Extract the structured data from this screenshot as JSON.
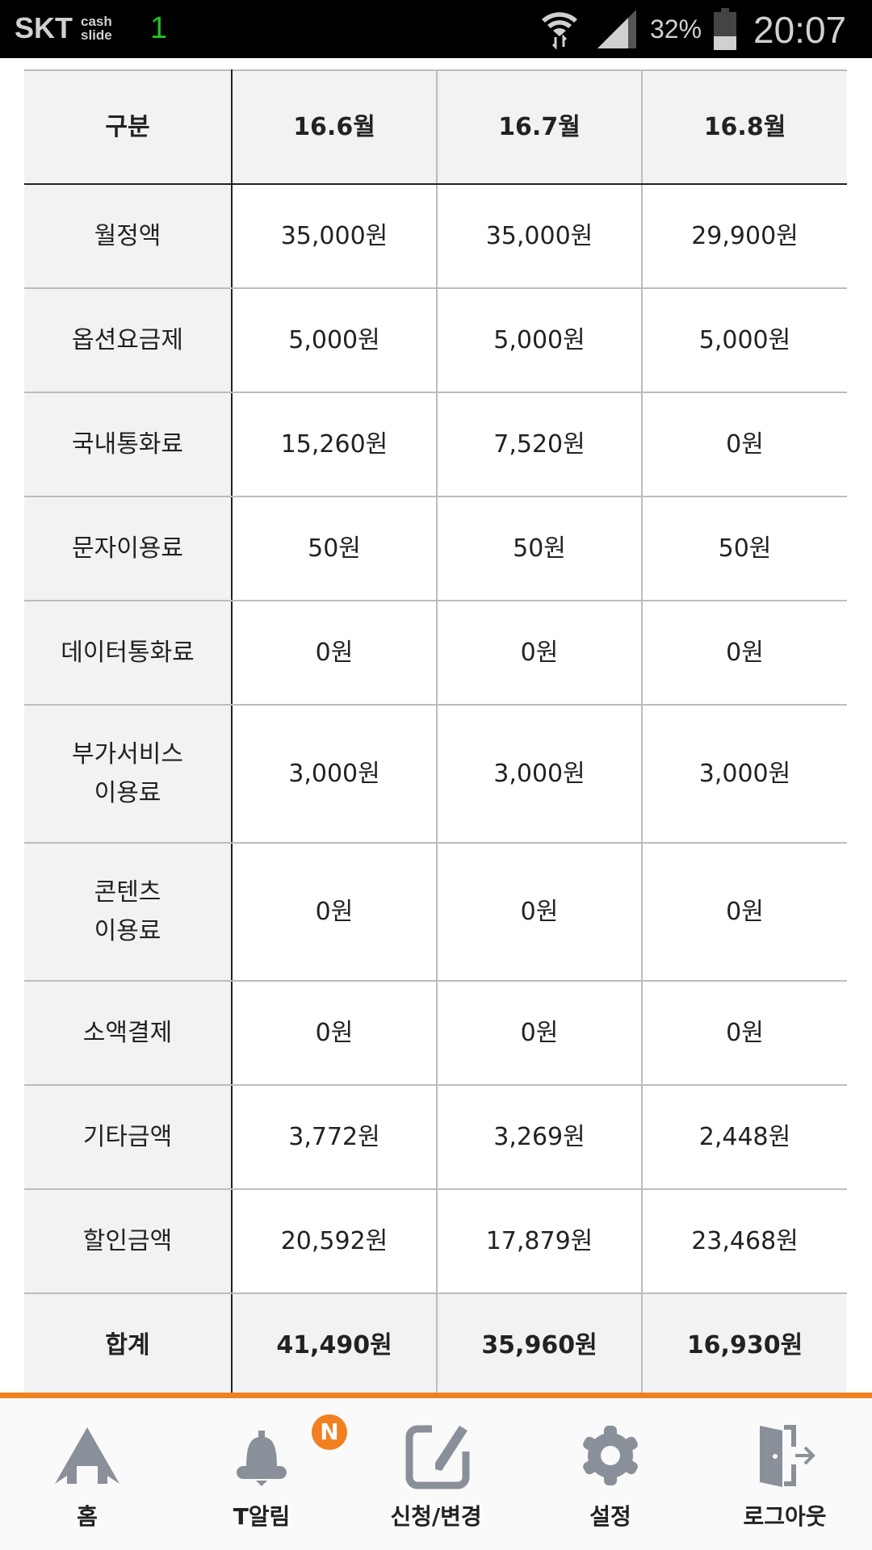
{
  "status_bar": {
    "carrier": "SKT",
    "app_line1": "cash",
    "app_line2": "slide",
    "notification_count": "1",
    "battery": "32%",
    "battery_level": 0.32,
    "time": "20:07"
  },
  "table": {
    "headers": [
      "구분",
      "16.6월",
      "16.7월",
      "16.8월"
    ],
    "rows": [
      {
        "label": "월정액",
        "values": [
          "35,000원",
          "35,000원",
          "29,900원"
        ]
      },
      {
        "label": "옵션요금제",
        "values": [
          "5,000원",
          "5,000원",
          "5,000원"
        ]
      },
      {
        "label": "국내통화료",
        "values": [
          "15,260원",
          "7,520원",
          "0원"
        ]
      },
      {
        "label": "문자이용료",
        "values": [
          "50원",
          "50원",
          "50원"
        ]
      },
      {
        "label": "데이터통화료",
        "values": [
          "0원",
          "0원",
          "0원"
        ]
      },
      {
        "label": "부가서비스\n이용료",
        "values": [
          "3,000원",
          "3,000원",
          "3,000원"
        ]
      },
      {
        "label": "콘텐츠\n이용료",
        "values": [
          "0원",
          "0원",
          "0원"
        ]
      },
      {
        "label": "소액결제",
        "values": [
          "0원",
          "0원",
          "0원"
        ]
      },
      {
        "label": "기타금액",
        "values": [
          "3,772원",
          "3,269원",
          "2,448원"
        ]
      },
      {
        "label": "할인금액",
        "values": [
          "20,592원",
          "17,879원",
          "23,468원"
        ]
      }
    ],
    "total": {
      "label": "합계",
      "values": [
        "41,490원",
        "35,960원",
        "16,930원"
      ]
    }
  },
  "nav": {
    "accent": "#f08020",
    "items": [
      {
        "label": "홈",
        "icon": "home-icon"
      },
      {
        "label": "T알림",
        "icon": "bell-icon",
        "badge": "N"
      },
      {
        "label": "신청/변경",
        "icon": "edit-icon"
      },
      {
        "label": "설정",
        "icon": "gear-icon"
      },
      {
        "label": "로그아웃",
        "icon": "logout-icon"
      }
    ]
  }
}
